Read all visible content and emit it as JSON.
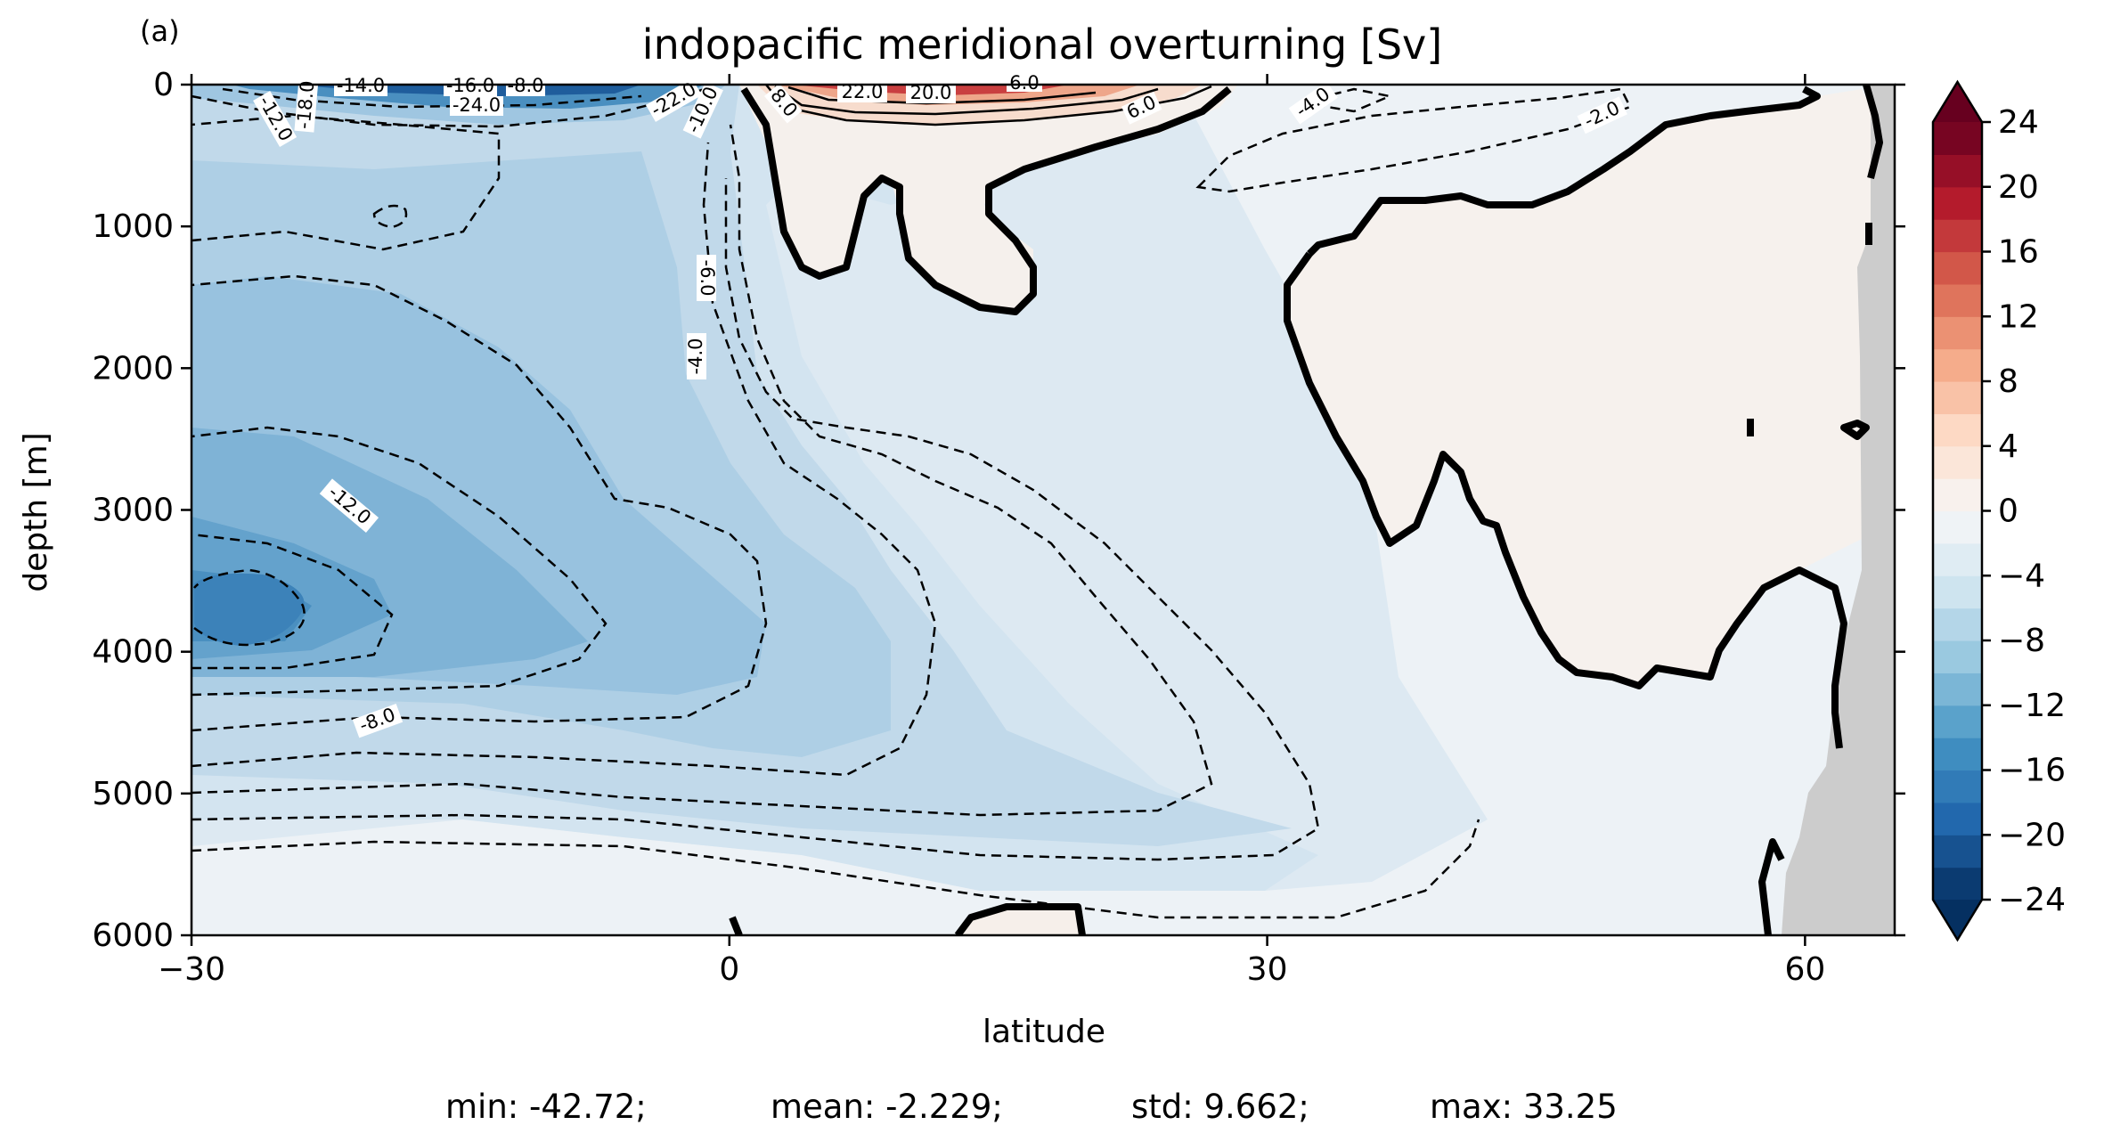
{
  "chart_data": {
    "type": "heatmap",
    "panel_label": "(a)",
    "title": "indopacific meridional overturning [Sv]",
    "xlabel": "latitude",
    "ylabel": "depth [m]",
    "xlim": [
      -30,
      65
    ],
    "ylim": [
      6000,
      0
    ],
    "x_ticks": [
      -30,
      0,
      30,
      60
    ],
    "x_tick_labels": [
      "−30",
      "0",
      "30",
      "60"
    ],
    "y_ticks": [
      0,
      1000,
      2000,
      3000,
      4000,
      5000,
      6000
    ],
    "y_tick_labels": [
      "0",
      "1000",
      "2000",
      "3000",
      "4000",
      "5000",
      "6000"
    ],
    "colorbar": {
      "ticks": [
        24,
        20,
        16,
        12,
        8,
        4,
        0,
        -4,
        -8,
        -12,
        -16,
        -20,
        -24
      ],
      "tick_labels": [
        "24",
        "20",
        "16",
        "12",
        "8",
        "4",
        "0",
        "−4",
        "−8",
        "−12",
        "−16",
        "−20",
        "−24"
      ],
      "extend": "both",
      "colormap": "RdBu_r",
      "levels_step": 2
    },
    "contour_labels": [
      "-14.0",
      "-16.0",
      "-8.0",
      "-24.0",
      "-18.0",
      "-12.0",
      "-22.0",
      "-10.0",
      "8.0",
      "22.0",
      "20.0",
      "6.0",
      "6.0",
      "-4.0",
      "-2.0",
      "-6.0",
      "-4.0",
      "-12.0",
      "-8.0"
    ],
    "stats": {
      "min": "min: -42.72;",
      "mean": "mean: -2.229;",
      "std": "std: 9.662;",
      "max": "max: 33.25"
    },
    "land_mask_color": "#cccccc"
  }
}
